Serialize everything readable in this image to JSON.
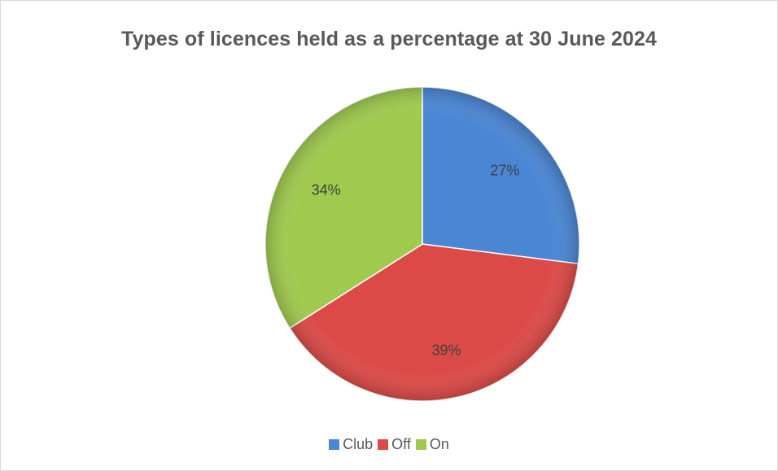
{
  "chart_data": {
    "type": "pie",
    "title": "Types of licences held as a percentage at 30 June 2024",
    "slices": [
      {
        "label": "Club",
        "value": 27,
        "display": "27%",
        "color": "#4a86d4"
      },
      {
        "label": "Off",
        "value": 39,
        "display": "39%",
        "color": "#dc4a47"
      },
      {
        "label": "On",
        "value": 34,
        "display": "34%",
        "color": "#9fca4e"
      }
    ],
    "legend_position": "bottom"
  }
}
